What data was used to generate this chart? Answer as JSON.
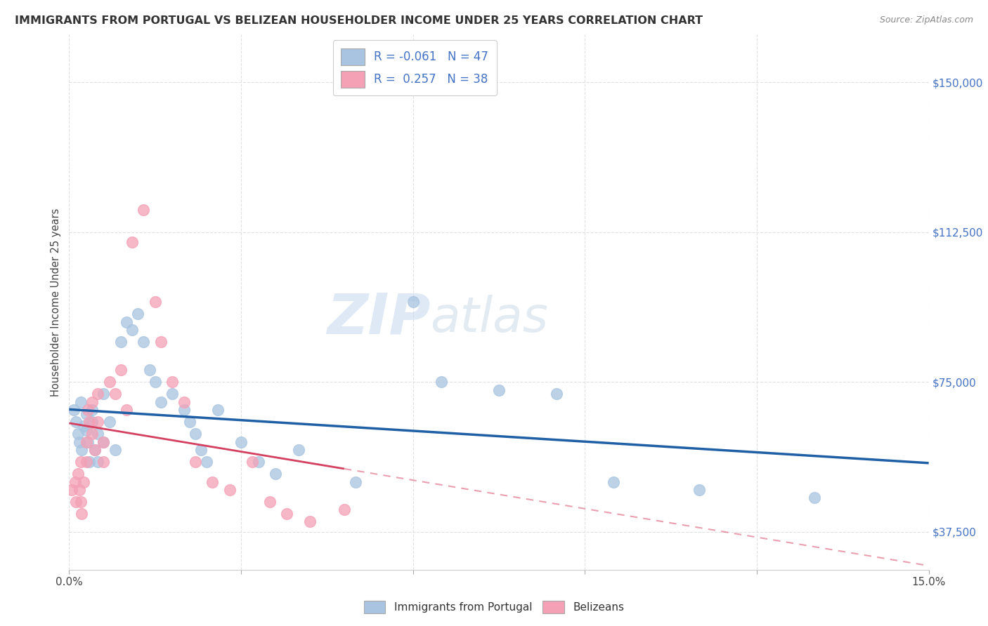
{
  "title": "IMMIGRANTS FROM PORTUGAL VS BELIZEAN HOUSEHOLDER INCOME UNDER 25 YEARS CORRELATION CHART",
  "source": "Source: ZipAtlas.com",
  "ylabel": "Householder Income Under 25 years",
  "xlim": [
    0.0,
    0.15
  ],
  "ylim": [
    28000,
    162000
  ],
  "xticks": [
    0.0,
    0.03,
    0.06,
    0.09,
    0.12,
    0.15
  ],
  "ytick_values": [
    37500,
    75000,
    112500,
    150000
  ],
  "ytick_labels": [
    "$37,500",
    "$75,000",
    "$112,500",
    "$150,000"
  ],
  "background_color": "#ffffff",
  "grid_color": "#e0e0e0",
  "portugal_color": "#a8c4e0",
  "belizean_color": "#f4a0b5",
  "portugal_line_color": "#1f5fa6",
  "belizean_line_color": "#d44060",
  "watermark_zip": "ZIP",
  "watermark_atlas": "atlas",
  "legend_R_portugal": "-0.061",
  "legend_N_portugal": "47",
  "legend_R_belizean": "0.257",
  "legend_N_belizean": "38",
  "portugal_x": [
    0.0008,
    0.0012,
    0.0015,
    0.0018,
    0.002,
    0.0022,
    0.0025,
    0.003,
    0.003,
    0.0032,
    0.0035,
    0.004,
    0.004,
    0.0045,
    0.005,
    0.005,
    0.006,
    0.006,
    0.007,
    0.008,
    0.009,
    0.01,
    0.011,
    0.012,
    0.013,
    0.014,
    0.015,
    0.016,
    0.018,
    0.02,
    0.021,
    0.022,
    0.023,
    0.024,
    0.026,
    0.03,
    0.033,
    0.036,
    0.04,
    0.05,
    0.06,
    0.065,
    0.075,
    0.085,
    0.095,
    0.11,
    0.13
  ],
  "portugal_y": [
    68000,
    65000,
    62000,
    60000,
    70000,
    58000,
    64000,
    63000,
    67000,
    60000,
    55000,
    65000,
    68000,
    58000,
    62000,
    55000,
    60000,
    72000,
    65000,
    58000,
    85000,
    90000,
    88000,
    92000,
    85000,
    78000,
    75000,
    70000,
    72000,
    68000,
    65000,
    62000,
    58000,
    55000,
    68000,
    60000,
    55000,
    52000,
    58000,
    50000,
    95000,
    75000,
    73000,
    72000,
    50000,
    48000,
    46000
  ],
  "belizean_x": [
    0.0005,
    0.001,
    0.0012,
    0.0015,
    0.0018,
    0.002,
    0.002,
    0.0022,
    0.0025,
    0.003,
    0.003,
    0.0032,
    0.0035,
    0.004,
    0.004,
    0.0045,
    0.005,
    0.005,
    0.006,
    0.006,
    0.007,
    0.008,
    0.009,
    0.01,
    0.011,
    0.013,
    0.015,
    0.016,
    0.018,
    0.02,
    0.022,
    0.025,
    0.028,
    0.032,
    0.035,
    0.038,
    0.042,
    0.048
  ],
  "belizean_y": [
    48000,
    50000,
    45000,
    52000,
    48000,
    55000,
    45000,
    42000,
    50000,
    60000,
    55000,
    68000,
    65000,
    70000,
    62000,
    58000,
    72000,
    65000,
    60000,
    55000,
    75000,
    72000,
    78000,
    68000,
    110000,
    118000,
    95000,
    85000,
    75000,
    70000,
    55000,
    50000,
    48000,
    55000,
    45000,
    42000,
    40000,
    43000
  ]
}
